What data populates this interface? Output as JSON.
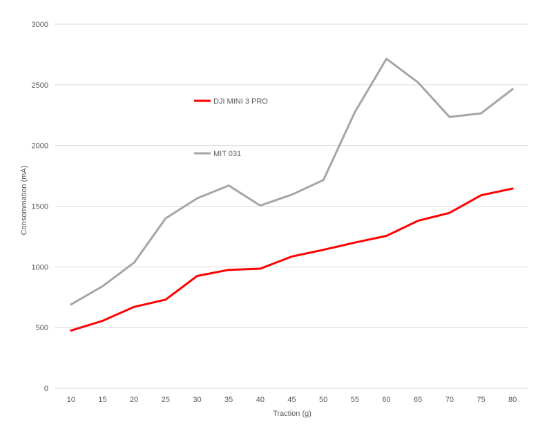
{
  "chart_data": {
    "type": "line",
    "title": "",
    "xlabel": "Traction (g)",
    "ylabel": "Consommation (mA)",
    "x": [
      10,
      15,
      20,
      25,
      30,
      35,
      40,
      45,
      50,
      55,
      60,
      65,
      70,
      75,
      80
    ],
    "ylim": [
      0,
      3000
    ],
    "yticks": [
      0,
      500,
      1000,
      1500,
      2000,
      2500,
      3000
    ],
    "grid": "horizontal",
    "legend_position": "inside-top-left",
    "series": [
      {
        "name": "DJI MINI 3 PRO",
        "color": "#ff0000",
        "values": [
          475,
          555,
          670,
          730,
          925,
          975,
          985,
          1085,
          1140,
          1200,
          1255,
          1380,
          1445,
          1590,
          1645
        ]
      },
      {
        "name": "MIT 031",
        "color": "#a5a5a5",
        "values": [
          690,
          840,
          1035,
          1400,
          1565,
          1670,
          1505,
          1595,
          1715,
          2275,
          2715,
          2520,
          2235,
          2265,
          2465
        ]
      }
    ]
  }
}
